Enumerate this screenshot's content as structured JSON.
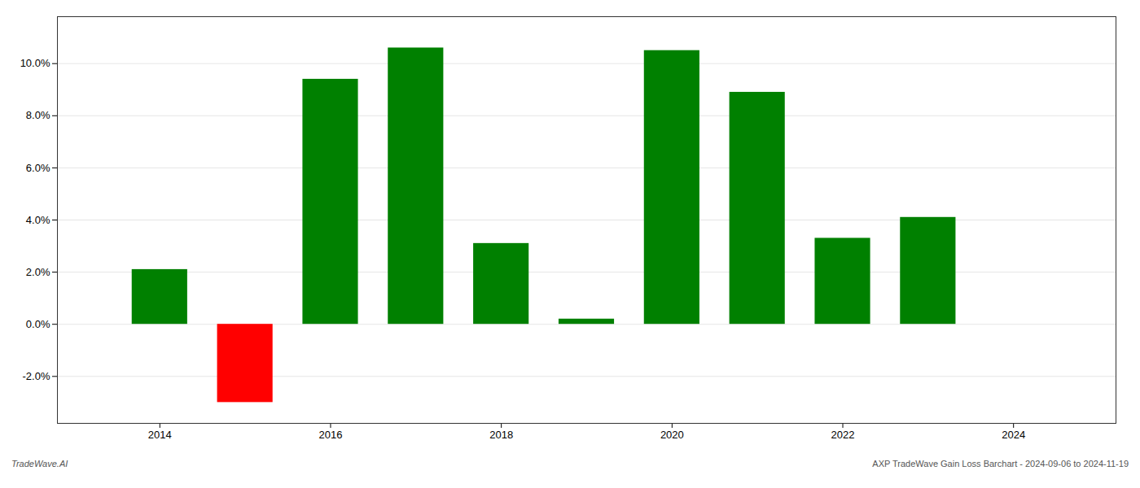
{
  "chart_data": {
    "type": "bar",
    "x": [
      2014,
      2015,
      2016,
      2017,
      2018,
      2019,
      2020,
      2021,
      2022,
      2023
    ],
    "values": [
      0.021,
      -0.03,
      0.094,
      0.106,
      0.031,
      0.002,
      0.105,
      0.089,
      0.033,
      0.041
    ],
    "colors": [
      "#008000",
      "#ff0000",
      "#008000",
      "#008000",
      "#008000",
      "#008000",
      "#008000",
      "#008000",
      "#008000",
      "#008000"
    ],
    "xlim": [
      2012.8,
      2025.2
    ],
    "xticks": [
      2014,
      2016,
      2018,
      2020,
      2022,
      2024
    ],
    "ylim": [
      -0.038,
      0.118
    ],
    "yticks": [
      {
        "value": -0.02,
        "label": "-2.0%"
      },
      {
        "value": 0.0,
        "label": "0.0%"
      },
      {
        "value": 0.02,
        "label": "2.0%"
      },
      {
        "value": 0.04,
        "label": "4.0%"
      },
      {
        "value": 0.06,
        "label": "6.0%"
      },
      {
        "value": 0.08,
        "label": "8.0%"
      },
      {
        "value": 0.1,
        "label": "10.0%"
      }
    ],
    "grid": true,
    "annotations": [
      "TradeWave.AI",
      "AXP TradeWave Gain Loss Barchart - 2024-09-06 to 2024-11-19"
    ]
  }
}
